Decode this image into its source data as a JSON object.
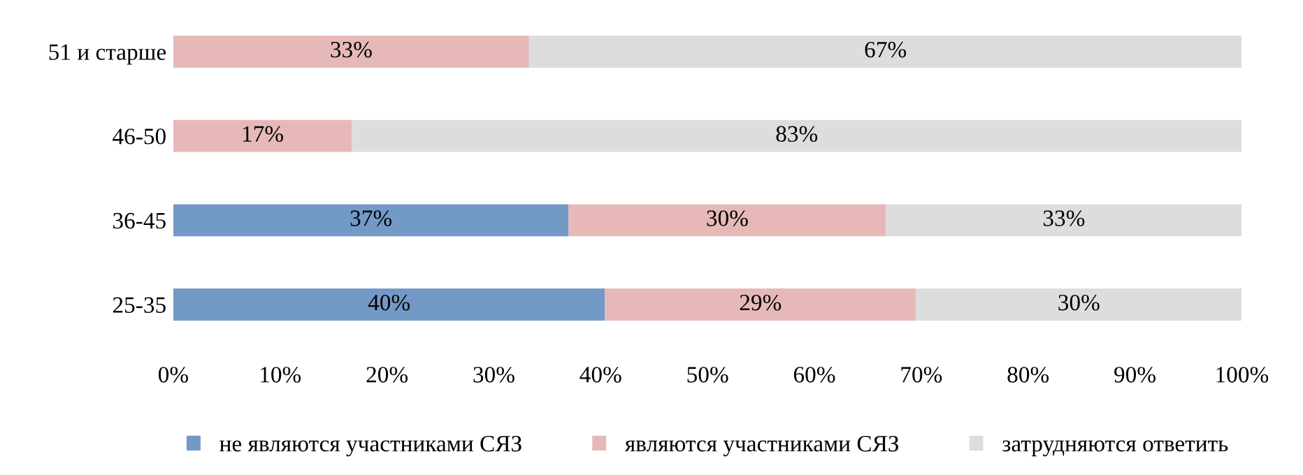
{
  "chart_data": {
    "type": "bar",
    "orientation": "horizontal",
    "stacked": true,
    "categories": [
      "51 и старше",
      "46-50",
      "36-45",
      "25-35"
    ],
    "series": [
      {
        "name": "не являются участниками СЯЗ",
        "color": "#7399c6",
        "values": [
          0,
          0,
          37,
          40.4
        ],
        "value_labels": [
          null,
          null,
          "37%",
          "40%"
        ]
      },
      {
        "name": "являются участниками СЯЗ",
        "color": "#e6b9b8",
        "values": [
          33.3,
          16.7,
          29.7,
          29.1
        ],
        "value_labels": [
          "33%",
          "17%",
          "30%",
          "29%"
        ]
      },
      {
        "name": "затрудняются ответить",
        "color": "#dddddd",
        "values": [
          66.7,
          83.3,
          33.3,
          30.5
        ],
        "value_labels": [
          "67%",
          "83%",
          "33%",
          "30%"
        ]
      }
    ],
    "xlim": [
      0,
      100
    ],
    "xticks": [
      {
        "value": 0,
        "label": "0%"
      },
      {
        "value": 10,
        "label": "10%"
      },
      {
        "value": 20,
        "label": "20%"
      },
      {
        "value": 30,
        "label": "30%"
      },
      {
        "value": 40,
        "label": "40%"
      },
      {
        "value": 50,
        "label": "50%"
      },
      {
        "value": 60,
        "label": "60%"
      },
      {
        "value": 70,
        "label": "70%"
      },
      {
        "value": 80,
        "label": "80%"
      },
      {
        "value": 90,
        "label": "90%"
      },
      {
        "value": 100,
        "label": "100%"
      }
    ],
    "grid": false,
    "legend": "bottom"
  }
}
